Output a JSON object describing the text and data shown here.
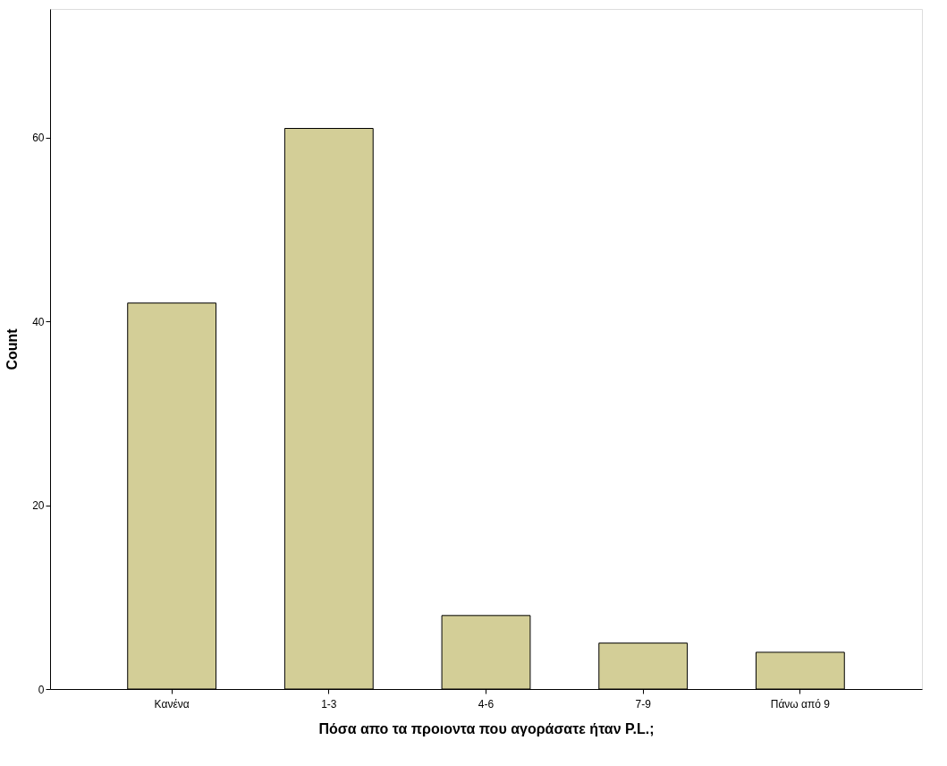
{
  "chart_data": {
    "type": "bar",
    "xlabel": "Πόσα απο τα προιοντα που αγοράσατε ήταν P.L.;",
    "ylabel": "Count",
    "categories": [
      "Κανένα",
      "1-3",
      "4-6",
      "7-9",
      "Πάνω από 9"
    ],
    "values": [
      42,
      61,
      8,
      5,
      4
    ],
    "color": "#d3ce97",
    "ylim": [
      0,
      74
    ],
    "yticks": [
      0,
      20,
      40,
      60
    ],
    "grid": false
  }
}
